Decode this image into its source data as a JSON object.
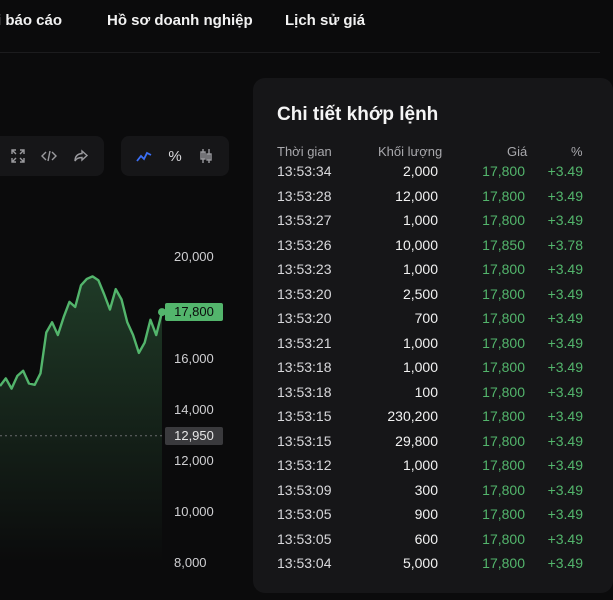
{
  "nav": {
    "tabs": [
      "i báo cáo",
      "Hồ sơ doanh nghiệp",
      "Lịch sử giá"
    ]
  },
  "toolbar": {
    "left_icons": [
      "expand-icon",
      "code-icon",
      "share-icon"
    ],
    "right_icons": [
      "line-chart-icon",
      "percent-icon",
      "candlestick-icon"
    ],
    "percent_label": "%",
    "active_color": "#3b6ff5"
  },
  "chart_data": {
    "type": "area",
    "y_ticks": [
      "20,000",
      "16,000",
      "14,000",
      "12,000",
      "10,000",
      "8,000"
    ],
    "ylim": [
      8000,
      20000
    ],
    "last_price": "17,800",
    "reference_price": "12,950",
    "series": [
      {
        "values": [
          14900,
          15200,
          14800,
          15300,
          15500,
          15000,
          14950,
          15400,
          17000,
          17400,
          16900,
          17600,
          18200,
          18000,
          18850,
          19100,
          19200,
          19050,
          18500,
          17900,
          18700,
          18300,
          17400,
          16900,
          16200,
          16600,
          17500,
          16900,
          17800
        ]
      }
    ],
    "line_color": "#53b56c"
  },
  "panel": {
    "title": "Chi tiết khớp lệnh",
    "headers": {
      "time": "Thời gian",
      "volume": "Khối lượng",
      "price": "Giá",
      "pct": "%"
    },
    "rows": [
      {
        "time": "13:53:34",
        "volume": "2,000",
        "price": "17,800",
        "pct": "+3.49"
      },
      {
        "time": "13:53:28",
        "volume": "12,000",
        "price": "17,800",
        "pct": "+3.49"
      },
      {
        "time": "13:53:27",
        "volume": "1,000",
        "price": "17,800",
        "pct": "+3.49"
      },
      {
        "time": "13:53:26",
        "volume": "10,000",
        "price": "17,850",
        "pct": "+3.78"
      },
      {
        "time": "13:53:23",
        "volume": "1,000",
        "price": "17,800",
        "pct": "+3.49"
      },
      {
        "time": "13:53:20",
        "volume": "2,500",
        "price": "17,800",
        "pct": "+3.49"
      },
      {
        "time": "13:53:20",
        "volume": "700",
        "price": "17,800",
        "pct": "+3.49"
      },
      {
        "time": "13:53:21",
        "volume": "1,000",
        "price": "17,800",
        "pct": "+3.49"
      },
      {
        "time": "13:53:18",
        "volume": "1,000",
        "price": "17,800",
        "pct": "+3.49"
      },
      {
        "time": "13:53:18",
        "volume": "100",
        "price": "17,800",
        "pct": "+3.49"
      },
      {
        "time": "13:53:15",
        "volume": "230,200",
        "price": "17,800",
        "pct": "+3.49"
      },
      {
        "time": "13:53:15",
        "volume": "29,800",
        "price": "17,800",
        "pct": "+3.49"
      },
      {
        "time": "13:53:12",
        "volume": "1,000",
        "price": "17,800",
        "pct": "+3.49"
      },
      {
        "time": "13:53:09",
        "volume": "300",
        "price": "17,800",
        "pct": "+3.49"
      },
      {
        "time": "13:53:05",
        "volume": "900",
        "price": "17,800",
        "pct": "+3.49"
      },
      {
        "time": "13:53:05",
        "volume": "600",
        "price": "17,800",
        "pct": "+3.49"
      },
      {
        "time": "13:53:04",
        "volume": "5,000",
        "price": "17,800",
        "pct": "+3.49"
      }
    ]
  }
}
